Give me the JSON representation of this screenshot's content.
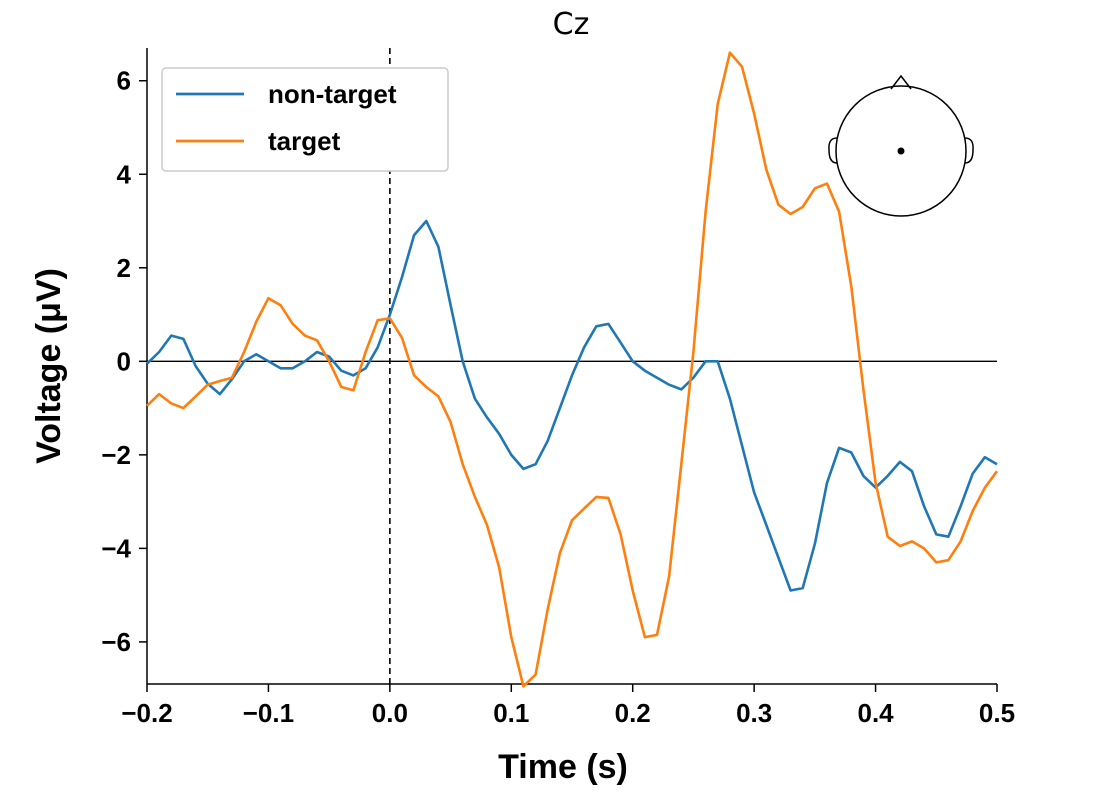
{
  "chart_data": {
    "type": "line",
    "title": "Cz",
    "xlabel": "Time (s)",
    "ylabel": "Voltage (μV)",
    "xlim": [
      -0.2,
      0.5
    ],
    "ylim": [
      -6.9,
      6.7
    ],
    "x_ticks": [
      -0.2,
      -0.1,
      0.0,
      0.1,
      0.2,
      0.3,
      0.4,
      0.5
    ],
    "x_tick_labels": [
      "−0.2",
      "−0.1",
      "0.0",
      "0.1",
      "0.2",
      "0.3",
      "0.4",
      "0.5"
    ],
    "y_ticks": [
      -6,
      -4,
      -2,
      0,
      2,
      4,
      6
    ],
    "y_tick_labels": [
      "−6",
      "−4",
      "−2",
      "0",
      "2",
      "4",
      "6"
    ],
    "grid": false,
    "legend_position": "top-left",
    "zero_line": {
      "y": 0,
      "color": "#000000"
    },
    "stimulus_line": {
      "x": 0.0,
      "style": "dashed",
      "color": "#000000"
    },
    "inset": {
      "type": "head-sensor-map",
      "sensor": "Cz",
      "position": "top-right"
    },
    "x": [
      -0.2,
      -0.19,
      -0.18,
      -0.17,
      -0.16,
      -0.15,
      -0.14,
      -0.13,
      -0.12,
      -0.11,
      -0.1,
      -0.09,
      -0.08,
      -0.07,
      -0.06,
      -0.05,
      -0.04,
      -0.03,
      -0.02,
      -0.01,
      0.0,
      0.01,
      0.02,
      0.03,
      0.04,
      0.05,
      0.06,
      0.07,
      0.08,
      0.09,
      0.1,
      0.11,
      0.12,
      0.13,
      0.14,
      0.15,
      0.16,
      0.17,
      0.18,
      0.19,
      0.2,
      0.21,
      0.22,
      0.23,
      0.24,
      0.25,
      0.26,
      0.27,
      0.28,
      0.29,
      0.3,
      0.31,
      0.32,
      0.33,
      0.34,
      0.35,
      0.36,
      0.37,
      0.38,
      0.39,
      0.4,
      0.41,
      0.42,
      0.43,
      0.44,
      0.45,
      0.46,
      0.47,
      0.48,
      0.49,
      0.5
    ],
    "series": [
      {
        "name": "non-target",
        "color": "#1f77b4",
        "values": [
          -0.05,
          0.2,
          0.55,
          0.48,
          -0.1,
          -0.48,
          -0.7,
          -0.38,
          0.0,
          0.15,
          0.0,
          -0.15,
          -0.15,
          0.0,
          0.2,
          0.1,
          -0.2,
          -0.3,
          -0.15,
          0.3,
          1.0,
          1.8,
          2.7,
          3.0,
          2.45,
          1.2,
          0.0,
          -0.8,
          -1.2,
          -1.55,
          -2.0,
          -2.3,
          -2.2,
          -1.7,
          -1.0,
          -0.3,
          0.3,
          0.75,
          0.8,
          0.4,
          0.0,
          -0.2,
          -0.35,
          -0.5,
          -0.6,
          -0.35,
          0.0,
          0.0,
          -0.8,
          -1.8,
          -2.8,
          -3.5,
          -4.2,
          -4.9,
          -4.85,
          -3.9,
          -2.6,
          -1.85,
          -1.95,
          -2.45,
          -2.7,
          -2.45,
          -2.15,
          -2.35,
          -3.1,
          -3.7,
          -3.75,
          -3.1,
          -2.4,
          -2.05,
          -2.2
        ]
      },
      {
        "name": "target",
        "color": "#ff7f0e",
        "values": [
          -0.95,
          -0.7,
          -0.9,
          -1.0,
          -0.75,
          -0.5,
          -0.42,
          -0.35,
          0.2,
          0.85,
          1.35,
          1.2,
          0.8,
          0.55,
          0.45,
          0.0,
          -0.55,
          -0.62,
          0.2,
          0.88,
          0.92,
          0.5,
          -0.3,
          -0.55,
          -0.75,
          -1.3,
          -2.2,
          -2.9,
          -3.5,
          -4.4,
          -5.9,
          -6.95,
          -6.7,
          -5.3,
          -4.1,
          -3.4,
          -3.15,
          -2.9,
          -2.92,
          -3.7,
          -4.9,
          -5.9,
          -5.85,
          -4.6,
          -2.2,
          0.2,
          3.2,
          5.5,
          6.6,
          6.3,
          5.3,
          4.1,
          3.35,
          3.15,
          3.3,
          3.7,
          3.8,
          3.2,
          1.6,
          -0.6,
          -2.6,
          -3.75,
          -3.95,
          -3.85,
          -4.0,
          -4.3,
          -4.25,
          -3.85,
          -3.2,
          -2.7,
          -2.35
        ]
      }
    ]
  }
}
